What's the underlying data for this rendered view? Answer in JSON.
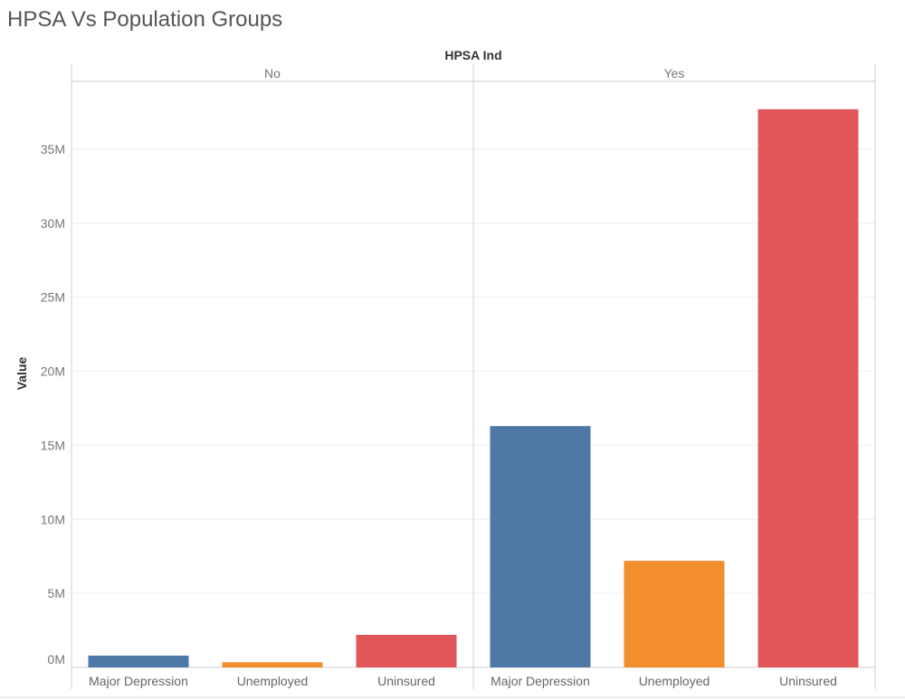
{
  "chart_data": {
    "type": "bar",
    "title": "HPSA Vs Population Groups",
    "column_header": "HPSA Ind",
    "ylabel": "Value",
    "ylim": [
      0,
      38000000
    ],
    "yticks": [
      0,
      5000000,
      10000000,
      15000000,
      20000000,
      25000000,
      30000000,
      35000000
    ],
    "ytick_labels": [
      "0M",
      "5M",
      "10M",
      "15M",
      "20M",
      "25M",
      "30M",
      "35M"
    ],
    "grid": true,
    "panels": [
      {
        "label": "No",
        "categories": [
          "Major Depression",
          "Unemployed",
          "Uninsured"
        ],
        "values": [
          800000,
          350000,
          2200000
        ]
      },
      {
        "label": "Yes",
        "categories": [
          "Major Depression",
          "Unemployed",
          "Uninsured"
        ],
        "values": [
          16300000,
          7200000,
          37700000
        ]
      }
    ],
    "category_colors": {
      "Major Depression": "#4e79a7",
      "Unemployed": "#f28e2b",
      "Uninsured": "#e15759"
    }
  }
}
